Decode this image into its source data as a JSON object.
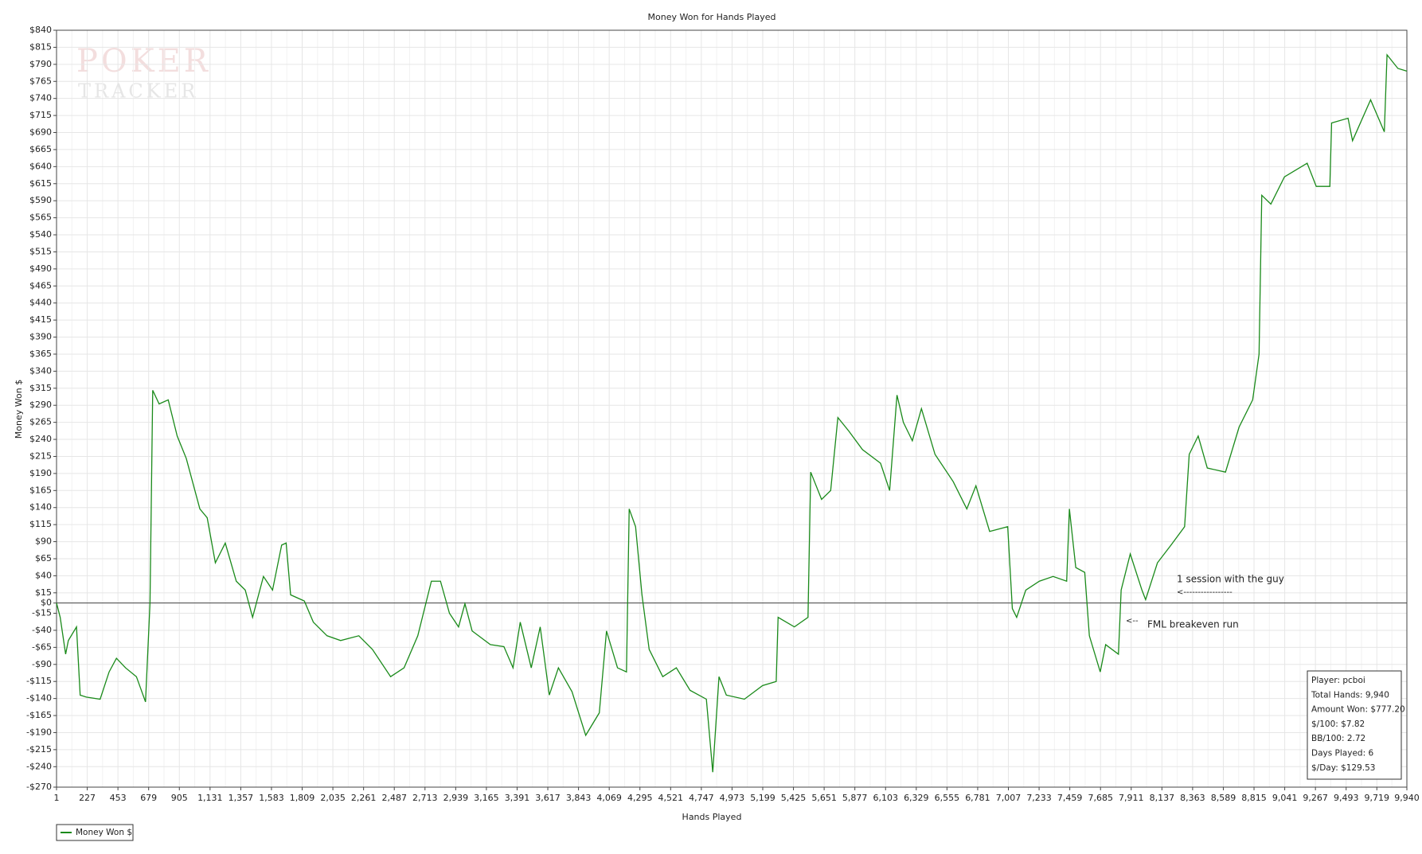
{
  "chart_data": {
    "type": "line",
    "title": "Money Won for Hands Played",
    "x_label": "Hands Played",
    "y_label": "Money Won $",
    "watermark": [
      "POKER",
      "TRACKER"
    ],
    "annotations": [
      "1 session with the guy",
      "<-----------------",
      "<--",
      "FML breakeven run"
    ],
    "stats": [
      "Player: pcboi",
      "Total Hands: 9,940",
      "Amount Won: $777.20",
      "$/100: $7.82",
      "BB/100: 2.72",
      "Days Played: 6",
      "$/Day: $129.53"
    ],
    "grid": true,
    "legend": "bottom-left",
    "xlim": [
      1,
      9940
    ],
    "ylim": [
      -270,
      840
    ],
    "xticks": [
      1,
      227,
      453,
      679,
      905,
      {
        "value": 1131,
        "label": "1,131"
      },
      {
        "value": 1357,
        "label": "1,357"
      },
      {
        "value": 1583,
        "label": "1,583"
      },
      {
        "value": 1809,
        "label": "1,809"
      },
      {
        "value": 2035,
        "label": "2,035"
      },
      {
        "value": 2261,
        "label": "2,261"
      },
      {
        "value": 2487,
        "label": "2,487"
      },
      {
        "value": 2713,
        "label": "2,713"
      },
      {
        "value": 2939,
        "label": "2,939"
      },
      {
        "value": 3165,
        "label": "3,165"
      },
      {
        "value": 3391,
        "label": "3,391"
      },
      {
        "value": 3617,
        "label": "3,617"
      },
      {
        "value": 3843,
        "label": "3,843"
      },
      {
        "value": 4069,
        "label": "4,069"
      },
      {
        "value": 4295,
        "label": "4,295"
      },
      {
        "value": 4521,
        "label": "4,521"
      },
      {
        "value": 4747,
        "label": "4,747"
      },
      {
        "value": 4973,
        "label": "4,973"
      },
      {
        "value": 5199,
        "label": "5,199"
      },
      {
        "value": 5425,
        "label": "5,425"
      },
      {
        "value": 5651,
        "label": "5,651"
      },
      {
        "value": 5877,
        "label": "5,877"
      },
      {
        "value": 6103,
        "label": "6,103"
      },
      {
        "value": 6329,
        "label": "6,329"
      },
      {
        "value": 6555,
        "label": "6,555"
      },
      {
        "value": 6781,
        "label": "6,781"
      },
      {
        "value": 7007,
        "label": "7,007"
      },
      {
        "value": 7233,
        "label": "7,233"
      },
      {
        "value": 7459,
        "label": "7,459"
      },
      {
        "value": 7685,
        "label": "7,685"
      },
      {
        "value": 7911,
        "label": "7,911"
      },
      {
        "value": 8137,
        "label": "8,137"
      },
      {
        "value": 8363,
        "label": "8,363"
      },
      {
        "value": 8589,
        "label": "8,589"
      },
      {
        "value": 8815,
        "label": "8,815"
      },
      {
        "value": 9041,
        "label": "9,041"
      },
      {
        "value": 9267,
        "label": "9,267"
      },
      {
        "value": 9493,
        "label": "9,493"
      },
      {
        "value": 9719,
        "label": "9,719"
      },
      {
        "value": 9940,
        "label": "9,940"
      }
    ],
    "yticks": [
      {
        "value": 840,
        "label": "$840"
      },
      {
        "value": 815,
        "label": "$815"
      },
      {
        "value": 790,
        "label": "$790"
      },
      {
        "value": 765,
        "label": "$765"
      },
      {
        "value": 740,
        "label": "$740"
      },
      {
        "value": 715,
        "label": "$715"
      },
      {
        "value": 690,
        "label": "$690"
      },
      {
        "value": 665,
        "label": "$665"
      },
      {
        "value": 640,
        "label": "$640"
      },
      {
        "value": 615,
        "label": "$615"
      },
      {
        "value": 590,
        "label": "$590"
      },
      {
        "value": 565,
        "label": "$565"
      },
      {
        "value": 540,
        "label": "$540"
      },
      {
        "value": 515,
        "label": "$515"
      },
      {
        "value": 490,
        "label": "$490"
      },
      {
        "value": 465,
        "label": "$465"
      },
      {
        "value": 440,
        "label": "$440"
      },
      {
        "value": 415,
        "label": "$415"
      },
      {
        "value": 390,
        "label": "$390"
      },
      {
        "value": 365,
        "label": "$365"
      },
      {
        "value": 340,
        "label": "$340"
      },
      {
        "value": 315,
        "label": "$315"
      },
      {
        "value": 290,
        "label": "$290"
      },
      {
        "value": 265,
        "label": "$265"
      },
      {
        "value": 240,
        "label": "$240"
      },
      {
        "value": 215,
        "label": "$215"
      },
      {
        "value": 190,
        "label": "$190"
      },
      {
        "value": 165,
        "label": "$165"
      },
      {
        "value": 140,
        "label": "$140"
      },
      {
        "value": 115,
        "label": "$115"
      },
      {
        "value": 90,
        "label": "$90"
      },
      {
        "value": 65,
        "label": "$65"
      },
      {
        "value": 40,
        "label": "$40"
      },
      {
        "value": 15,
        "label": "$15"
      },
      {
        "value": 0,
        "label": "$0"
      },
      {
        "value": -15,
        "label": "-$15"
      },
      {
        "value": -40,
        "label": "-$40"
      },
      {
        "value": -65,
        "label": "-$65"
      },
      {
        "value": -90,
        "label": "-$90"
      },
      {
        "value": -115,
        "label": "-$115"
      },
      {
        "value": -140,
        "label": "-$140"
      },
      {
        "value": -165,
        "label": "-$165"
      },
      {
        "value": -190,
        "label": "-$190"
      },
      {
        "value": -215,
        "label": "-$215"
      },
      {
        "value": -240,
        "label": "-$240"
      },
      {
        "value": -270,
        "label": "-$270"
      }
    ],
    "x": [
      1,
      28,
      68,
      88,
      148,
      175,
      221,
      322,
      388,
      442,
      509,
      589,
      656,
      689,
      709,
      756,
      823,
      889,
      956,
      1056,
      1110,
      1170,
      1243,
      1324,
      1390,
      1444,
      1524,
      1591,
      1658,
      1691,
      1724,
      1825,
      1891,
      1992,
      2092,
      2226,
      2326,
      2460,
      2559,
      2660,
      2760,
      2827,
      2893,
      2960,
      3007,
      3060,
      3194,
      3294,
      3361,
      3414,
      3495,
      3561,
      3628,
      3695,
      3795,
      3896,
      3996,
      4049,
      4130,
      4196,
      4216,
      4263,
      4310,
      4363,
      4463,
      4563,
      4664,
      4784,
      4831,
      4877,
      4931,
      5064,
      5198,
      5298,
      5312,
      5432,
      5532,
      5552,
      5632,
      5699,
      5752,
      5833,
      5933,
      6066,
      6133,
      6187,
      6234,
      6300,
      6367,
      6467,
      6601,
      6701,
      6768,
      6869,
      7002,
      7036,
      7068,
      7135,
      7235,
      7336,
      7436,
      7456,
      7503,
      7569,
      7603,
      7683,
      7723,
      7817,
      7837,
      7904,
      7990,
      8017,
      8104,
      8204,
      8304,
      8338,
      8404,
      8471,
      8605,
      8705,
      8805,
      8852,
      8872,
      8939,
      9039,
      9206,
      9273,
      9373,
      9386,
      9507,
      9540,
      9673,
      9774,
      9794,
      9874,
      9940
    ],
    "series": [
      {
        "name": "Money Won $",
        "color": "#1a8a1a",
        "values": [
          0,
          -21,
          -75,
          -55,
          -35,
          -135,
          -138,
          -141,
          -101,
          -81,
          -95,
          -108,
          -145,
          0,
          312,
          292,
          298,
          245,
          212,
          138,
          125,
          59,
          88,
          32,
          19,
          -21,
          39,
          19,
          85,
          88,
          12,
          3,
          -28,
          -48,
          -55,
          -48,
          -68,
          -108,
          -95,
          -48,
          32,
          32,
          -15,
          -35,
          -1,
          -41,
          -61,
          -64,
          -95,
          -28,
          -95,
          -35,
          -135,
          -95,
          -130,
          -194,
          -161,
          -41,
          -95,
          -101,
          138,
          112,
          12,
          -68,
          -108,
          -95,
          -128,
          -141,
          -248,
          -108,
          -135,
          -141,
          -121,
          -115,
          -21,
          -35,
          -21,
          192,
          152,
          165,
          272,
          252,
          225,
          205,
          165,
          305,
          265,
          238,
          285,
          218,
          178,
          138,
          172,
          105,
          112,
          -8,
          -21,
          19,
          32,
          39,
          32,
          138,
          52,
          45,
          -48,
          -101,
          -61,
          -75,
          19,
          72,
          19,
          5,
          59,
          85,
          112,
          218,
          245,
          198,
          192,
          258,
          298,
          365,
          598,
          585,
          625,
          645,
          611,
          611,
          704,
          711,
          678,
          738,
          691,
          804,
          784,
          780
        ]
      }
    ]
  }
}
